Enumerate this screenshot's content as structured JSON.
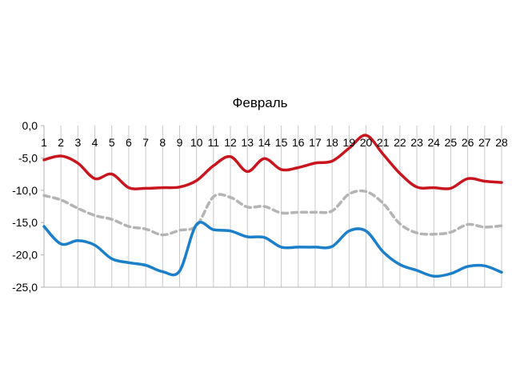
{
  "chart_data": {
    "type": "line",
    "title": "Февраль",
    "xlabel": "",
    "ylabel": "",
    "ylim": [
      -25,
      0
    ],
    "yticks": [
      0,
      -5,
      -10,
      -15,
      -20,
      -25
    ],
    "ytick_labels": [
      "0,0",
      "-5,0",
      "-10,0",
      "-15,0",
      "-20,0",
      "-25,0"
    ],
    "grid": "vertical",
    "legend": "none",
    "categories": [
      "1",
      "2",
      "3",
      "4",
      "5",
      "6",
      "7",
      "8",
      "9",
      "10",
      "11",
      "12",
      "13",
      "14",
      "15",
      "16",
      "17",
      "18",
      "19",
      "20",
      "21",
      "22",
      "23",
      "24",
      "25",
      "26",
      "27",
      "28"
    ],
    "series": [
      {
        "color": "#c9151e",
        "style": "solid",
        "values": [
          -5.3,
          -4.7,
          -5.8,
          -8.2,
          -7.5,
          -9.6,
          -9.7,
          -9.6,
          -9.5,
          -8.5,
          -6.2,
          -4.8,
          -7.1,
          -5.1,
          -6.8,
          -6.5,
          -5.8,
          -5.5,
          -3.5,
          -1.5,
          -4.4,
          -7.4,
          -9.5,
          -9.6,
          -9.7,
          -8.2,
          -8.6,
          -8.8
        ]
      },
      {
        "color": "#b4b4b4",
        "style": "dashed",
        "values": [
          -10.8,
          -11.5,
          -12.8,
          -13.9,
          -14.5,
          -15.6,
          -16.0,
          -16.9,
          -16.2,
          -15.5,
          -11.0,
          -11.1,
          -12.6,
          -12.5,
          -13.5,
          -13.4,
          -13.4,
          -13.2,
          -10.6,
          -10.2,
          -12.0,
          -15.2,
          -16.6,
          -16.8,
          -16.5,
          -15.3,
          -15.7,
          -15.5
        ]
      },
      {
        "color": "#1b7fc9",
        "style": "solid",
        "values": [
          -15.6,
          -18.3,
          -17.8,
          -18.5,
          -20.6,
          -21.2,
          -21.6,
          -22.6,
          -22.5,
          -15.3,
          -16.1,
          -16.3,
          -17.2,
          -17.3,
          -18.8,
          -18.8,
          -18.8,
          -18.7,
          -16.3,
          -16.3,
          -19.5,
          -21.5,
          -22.4,
          -23.3,
          -22.9,
          -21.8,
          -21.7,
          -22.7
        ]
      }
    ]
  }
}
